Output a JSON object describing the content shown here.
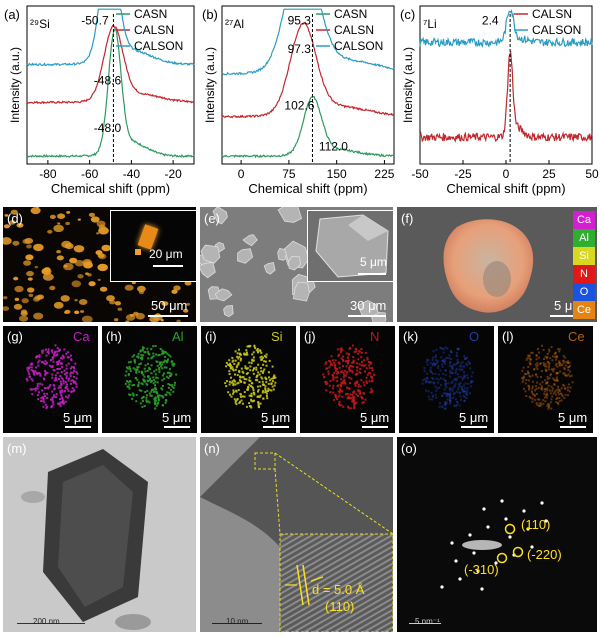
{
  "chart_data": [
    {
      "type": "line",
      "panel": "(a)",
      "nucleus": "²⁹Si",
      "xlabel": "Chemical shift (ppm)",
      "ylabel": "Intensity (a.u.)",
      "xlim": [
        -90,
        -10
      ],
      "xticks": [
        "-80",
        "-60",
        "-40",
        "-20"
      ],
      "xtick_values": [
        -80,
        -60,
        -40,
        -20
      ],
      "x_reversed": false,
      "series": [
        {
          "name": "CASN",
          "color": "#2e9a5e",
          "peak": -48.0,
          "offset": 0.0,
          "height": 0.75,
          "width": 3.0
        },
        {
          "name": "CALSN",
          "color": "#c0282d",
          "peak": -48.6,
          "offset": 0.34,
          "height": 0.45,
          "width": 4.5
        },
        {
          "name": "CALSON",
          "color": "#2a9cc4",
          "peak": -50.7,
          "offset": 0.58,
          "height": 0.75,
          "width": 4.0
        }
      ],
      "peak_labels": [
        "-50.7",
        "-48.6",
        "-48.0"
      ],
      "dashed_line_at": -48.6
    },
    {
      "type": "line",
      "panel": "(b)",
      "nucleus": "²⁷Al",
      "xlabel": "Chemical shift (ppm)",
      "ylabel": "Intensity (a.u.)",
      "xlim": [
        -30,
        240
      ],
      "xticks": [
        "0",
        "75",
        "150",
        "225"
      ],
      "xtick_values": [
        0,
        75,
        150,
        225
      ],
      "series": [
        {
          "name": "CASN",
          "color": "#2e9a5e",
          "peak": 112.0,
          "offset": 0.0,
          "height": 0.35,
          "width": 14
        },
        {
          "name": "CALSN",
          "color": "#c0282d",
          "peak": 97.3,
          "offset": 0.25,
          "height": 0.55,
          "width": 20
        },
        {
          "name": "CALSON",
          "color": "#2a9cc4",
          "peak": 95.3,
          "offset": 0.52,
          "height": 0.75,
          "width": 24
        }
      ],
      "peak_labels": [
        "95.3",
        "97.3",
        "102.6",
        "112.0"
      ],
      "dashed_line_at": 112.0
    },
    {
      "type": "line",
      "panel": "(c)",
      "nucleus": "⁷Li",
      "xlabel": "Chemical shift (ppm)",
      "ylabel": "Intensity (a.u.)",
      "xlim": [
        -50,
        50
      ],
      "xticks": [
        "-50",
        "-25",
        "0",
        "25",
        "50"
      ],
      "xtick_values": [
        -50,
        -25,
        0,
        25,
        50
      ],
      "series": [
        {
          "name": "CALSN",
          "color": "#c0282d",
          "peak": 2.4,
          "offset": 0.12,
          "height": 0.5,
          "width": 1.5
        },
        {
          "name": "CALSON",
          "color": "#2a9cc4",
          "peak": 2.4,
          "offset": 0.72,
          "height": 0.2,
          "width": 2.0
        }
      ],
      "peak_labels": [
        "2.4"
      ],
      "dashed_line_at": 2.4
    }
  ],
  "images": {
    "d": {
      "label": "(d)",
      "scale": "50 μm",
      "inset_scale": "20 μm"
    },
    "e": {
      "label": "(e)",
      "scale": "30 μm",
      "inset_scale": "5 μm"
    },
    "f": {
      "label": "(f)",
      "scale": "5 μm",
      "legend": [
        "Ca",
        "Al",
        "Si",
        "N",
        "O",
        "Ce"
      ],
      "legend_colors": [
        "#d11fd1",
        "#2fae2f",
        "#d8d820",
        "#e01818",
        "#1c52e0",
        "#e48414"
      ]
    },
    "maps": [
      {
        "label": "(g)",
        "element": "Ca",
        "color": "#c020c0",
        "scale": "5 μm"
      },
      {
        "label": "(h)",
        "element": "Al",
        "color": "#2ea02a",
        "scale": "5 μm"
      },
      {
        "label": "(i)",
        "element": "Si",
        "color": "#c8c818",
        "scale": "5 μm"
      },
      {
        "label": "(j)",
        "element": "N",
        "color": "#c01818",
        "scale": "5 μm"
      },
      {
        "label": "(k)",
        "element": "O",
        "color": "#1c3ea8",
        "scale": "5 μm"
      },
      {
        "label": "(l)",
        "element": "Ce",
        "color": "#b86010",
        "scale": "5 μm"
      }
    ],
    "m": {
      "label": "(m)",
      "scale": "200 nm"
    },
    "n": {
      "label": "(n)",
      "scale": "10 nm",
      "dspacing": "d = 5.0 Å",
      "plane": "(110)"
    },
    "o": {
      "label": "(o)",
      "scale": "5 nm⁻¹",
      "spots": [
        "(110)",
        "(-220)",
        "(-310)"
      ]
    }
  }
}
